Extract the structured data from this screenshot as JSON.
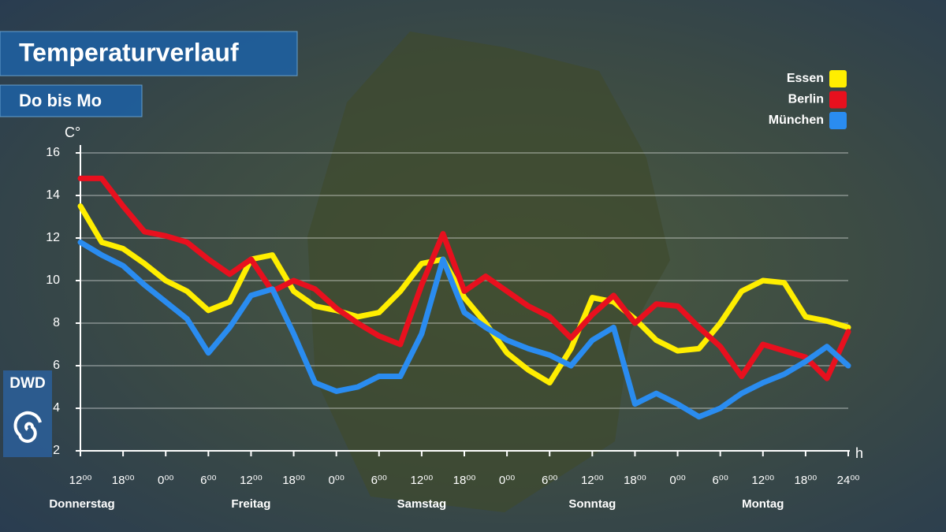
{
  "chart_data": {
    "type": "line",
    "title": "Temperaturverlauf",
    "subtitle": "Do bis Mo",
    "y_label": "C°",
    "x_label": "h",
    "logo": "DWD",
    "day_labels": [
      "Donnerstag",
      "Freitag",
      "Samstag",
      "Sonntag",
      "Montag"
    ],
    "x": [
      0,
      3,
      6,
      9,
      12,
      15,
      18,
      21,
      24,
      27,
      30,
      33,
      36,
      39,
      42,
      45,
      48,
      51,
      54,
      57,
      60,
      63,
      66,
      69,
      72,
      75,
      78,
      81,
      84,
      87,
      90,
      93,
      96,
      99,
      102,
      105,
      108
    ],
    "series": [
      {
        "name": "Essen",
        "color": "#ffee00",
        "values": [
          13.5,
          11.8,
          11.5,
          10.8,
          10.0,
          9.5,
          8.6,
          9.0,
          11.0,
          11.2,
          9.5,
          8.8,
          8.6,
          8.3,
          8.5,
          9.5,
          10.8,
          11.0,
          9.2,
          8.0,
          6.6,
          5.8,
          5.2,
          6.8,
          9.2,
          9.0,
          8.2,
          7.2,
          6.7,
          6.8,
          8.0,
          9.5,
          10.0,
          9.9,
          8.3,
          8.1,
          7.8
        ]
      },
      {
        "name": "Berlin",
        "color": "#e8101e",
        "values": [
          14.8,
          14.8,
          13.5,
          12.3,
          12.1,
          11.8,
          11.0,
          10.3,
          11.0,
          9.5,
          10.0,
          9.6,
          8.7,
          8.0,
          7.4,
          7.0,
          9.8,
          12.2,
          9.5,
          10.2,
          9.5,
          8.8,
          8.3,
          7.3,
          8.4,
          9.3,
          8.0,
          8.9,
          8.8,
          7.8,
          6.9,
          5.5,
          7.0,
          6.7,
          6.4,
          5.4,
          7.6
        ]
      },
      {
        "name": "München",
        "color": "#2a8cf0",
        "values": [
          11.8,
          11.2,
          10.7,
          9.8,
          9.0,
          8.2,
          6.6,
          7.8,
          9.3,
          9.6,
          7.5,
          5.2,
          4.8,
          5.0,
          5.5,
          5.5,
          7.5,
          11.0,
          8.5,
          7.8,
          7.2,
          6.8,
          6.5,
          6.0,
          7.2,
          7.8,
          4.2,
          4.7,
          4.2,
          3.6,
          4.0,
          4.7,
          5.2,
          5.6,
          6.2,
          6.9,
          6.0
        ]
      }
    ],
    "xlim": [
      0,
      108
    ],
    "xticks": [
      {
        "value": 0,
        "label": "12⁰⁰"
      },
      {
        "value": 6,
        "label": "18⁰⁰"
      },
      {
        "value": 12,
        "label": "0⁰⁰"
      },
      {
        "value": 18,
        "label": "6⁰⁰"
      },
      {
        "value": 24,
        "label": "12⁰⁰"
      },
      {
        "value": 30,
        "label": "18⁰⁰"
      },
      {
        "value": 36,
        "label": "0⁰⁰"
      },
      {
        "value": 42,
        "label": "6⁰⁰"
      },
      {
        "value": 48,
        "label": "12⁰⁰"
      },
      {
        "value": 54,
        "label": "18⁰⁰"
      },
      {
        "value": 60,
        "label": "0⁰⁰"
      },
      {
        "value": 66,
        "label": "6⁰⁰"
      },
      {
        "value": 72,
        "label": "12⁰⁰"
      },
      {
        "value": 78,
        "label": "18⁰⁰"
      },
      {
        "value": 84,
        "label": "0⁰⁰"
      },
      {
        "value": 90,
        "label": "6⁰⁰"
      },
      {
        "value": 96,
        "label": "12⁰⁰"
      },
      {
        "value": 102,
        "label": "18⁰⁰"
      },
      {
        "value": 108,
        "label": "24⁰⁰"
      }
    ],
    "ylim": [
      2,
      16
    ],
    "yticks": [
      2,
      4,
      6,
      8,
      10,
      12,
      14,
      16
    ],
    "grid": true,
    "legend": "top-right"
  }
}
